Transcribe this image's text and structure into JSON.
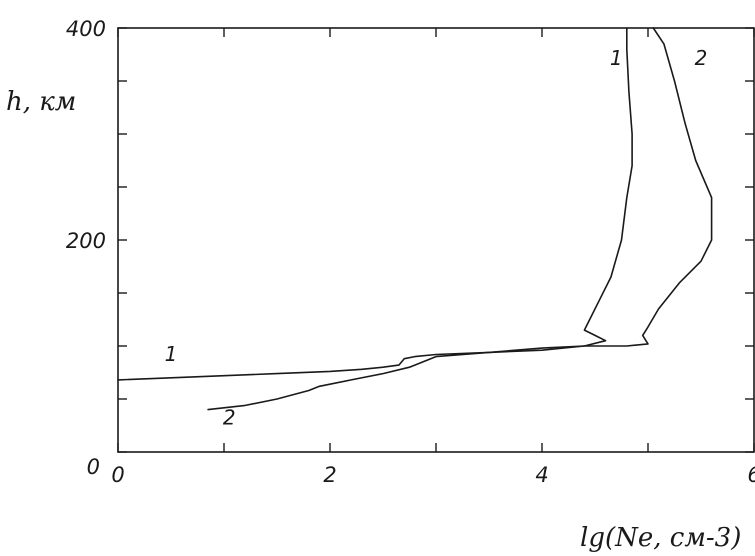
{
  "chart_data": {
    "type": "line",
    "title": "",
    "xlabel": "lg(Ne, см-3)",
    "ylabel": "h, км",
    "xlim": [
      0,
      6
    ],
    "ylim": [
      0,
      400
    ],
    "x_ticks": [
      0,
      2,
      4,
      6
    ],
    "x_tick_labels": [
      "0",
      "2",
      "4",
      "6"
    ],
    "y_ticks": [
      0,
      200,
      400
    ],
    "y_tick_labels": [
      "0",
      "200",
      "400"
    ],
    "grid": false,
    "legend": "none",
    "series": [
      {
        "name": "1",
        "x": [
          0.0,
          0.5,
          1.0,
          1.5,
          2.0,
          2.3,
          2.5,
          2.65,
          2.7,
          2.8,
          3.0,
          3.5,
          4.0,
          4.4,
          4.6,
          4.5,
          4.4,
          4.45,
          4.55,
          4.65,
          4.75,
          4.8,
          4.85,
          4.85,
          4.82,
          4.8,
          4.8
        ],
        "y": [
          68,
          70,
          72,
          74,
          76,
          78,
          80,
          82,
          88,
          90,
          92,
          94,
          96,
          100,
          105,
          110,
          115,
          125,
          145,
          165,
          200,
          240,
          270,
          300,
          340,
          380,
          400
        ]
      },
      {
        "name": "2",
        "x": [
          0.85,
          1.2,
          1.5,
          1.8,
          1.9,
          2.2,
          2.5,
          2.75,
          3.0,
          3.5,
          4.0,
          4.4,
          4.8,
          5.0,
          4.95,
          5.0,
          5.1,
          5.3,
          5.5,
          5.6,
          5.6,
          5.45,
          5.35,
          5.25,
          5.15,
          5.05
        ],
        "y": [
          40,
          44,
          50,
          58,
          62,
          68,
          74,
          80,
          90,
          94,
          98,
          100,
          100,
          102,
          110,
          118,
          135,
          160,
          180,
          200,
          240,
          275,
          310,
          350,
          385,
          400
        ]
      }
    ],
    "curve_labels": [
      {
        "text": "1",
        "x": 0.5,
        "y": 86
      },
      {
        "text": "2",
        "x": 1.05,
        "y": 26
      },
      {
        "text": "1",
        "x": 4.7,
        "y": 365
      },
      {
        "text": "2",
        "x": 5.5,
        "y": 365
      }
    ]
  }
}
